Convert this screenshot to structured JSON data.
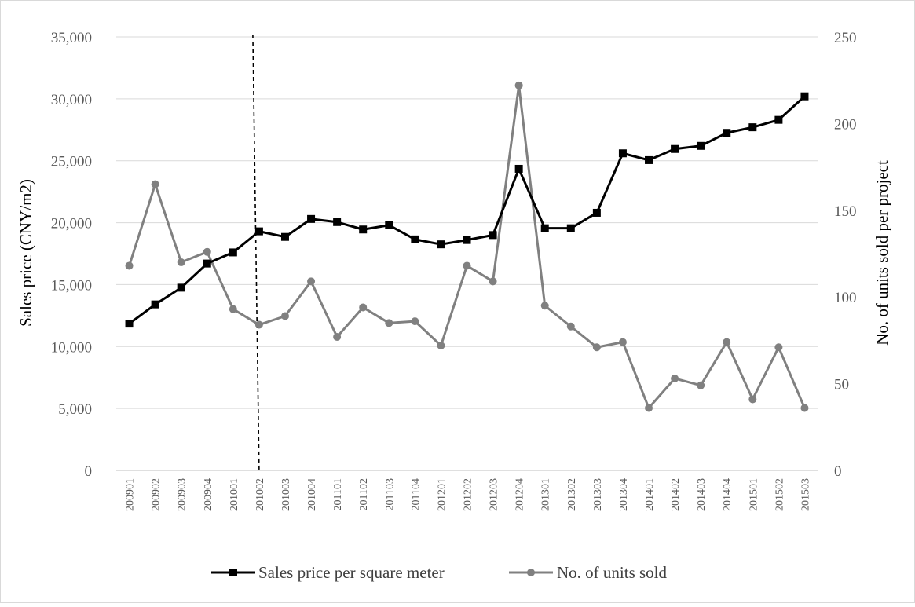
{
  "chart_data": {
    "type": "line",
    "categories": [
      "200901",
      "200902",
      "200903",
      "200904",
      "201001",
      "201002",
      "201003",
      "201004",
      "201101",
      "201102",
      "201103",
      "201104",
      "201201",
      "201202",
      "201203",
      "201204",
      "201301",
      "201302",
      "201303",
      "201304",
      "201401",
      "201402",
      "201403",
      "201404",
      "201501",
      "201502",
      "201503"
    ],
    "series": [
      {
        "name": "Sales price per square meter",
        "axis": "left",
        "color": "#000000",
        "marker": "square",
        "values": [
          11850,
          13400,
          14750,
          16700,
          17600,
          19300,
          18850,
          20300,
          20050,
          19450,
          19800,
          18650,
          18250,
          18600,
          19000,
          24350,
          19550,
          19550,
          20800,
          25600,
          25050,
          25950,
          26200,
          27250,
          27700,
          28300,
          30200
        ]
      },
      {
        "name": "No. of units sold",
        "axis": "right",
        "color": "#808080",
        "marker": "circle",
        "values": [
          118,
          165,
          120,
          126,
          93,
          84,
          89,
          109,
          77,
          94,
          85,
          86,
          72,
          118,
          109,
          222,
          95,
          83,
          71,
          74,
          36,
          53,
          49,
          74,
          41,
          71,
          36
        ]
      }
    ],
    "y_left": {
      "label": "Sales price (CNY/m2)",
      "ylim": [
        0,
        35000
      ],
      "ticks": [
        "0",
        "5,000",
        "10,000",
        "15,000",
        "20,000",
        "25,000",
        "30,000",
        "35,000"
      ]
    },
    "y_right": {
      "label": "No. of units sold per project",
      "ylim": [
        0,
        250
      ],
      "ticks": [
        "0",
        "50",
        "100",
        "150",
        "200",
        "250"
      ]
    },
    "vertical_marker": {
      "category": "201002",
      "style": "dashed"
    },
    "grid": true,
    "legend": "bottom"
  }
}
